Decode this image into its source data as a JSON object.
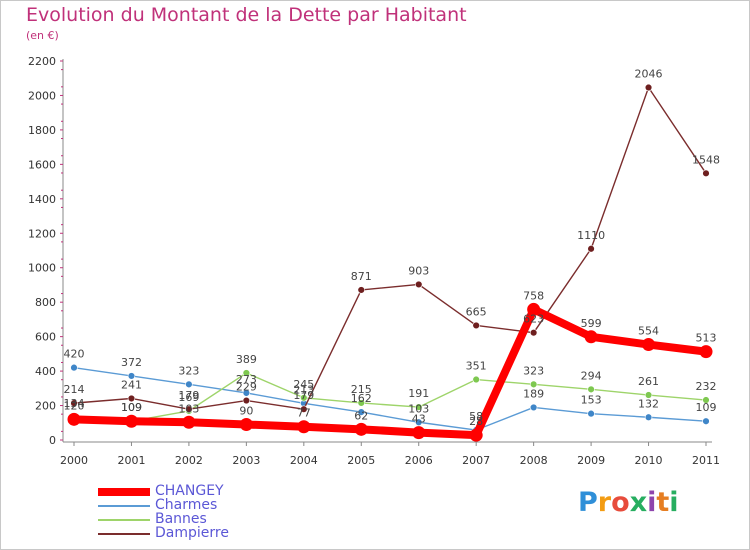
{
  "header": {
    "title": "Evolution du Montant de la Dette par Habitant",
    "subtitle": "(en €)"
  },
  "logo": {
    "letters": [
      {
        "ch": "P",
        "color": "#2f8fd8"
      },
      {
        "ch": "r",
        "color": "#f39c12"
      },
      {
        "ch": "o",
        "color": "#e74c3c"
      },
      {
        "ch": "x",
        "color": "#27ae60"
      },
      {
        "ch": "i",
        "color": "#8e44ad"
      },
      {
        "ch": "t",
        "color": "#e67e22"
      },
      {
        "ch": "i",
        "color": "#27ae60"
      }
    ]
  },
  "chart_data": {
    "type": "line",
    "title": "Evolution du Montant de la Dette par Habitant",
    "subtitle": "(en €)",
    "x": [
      "2000",
      "2001",
      "2002",
      "2003",
      "2004",
      "2005",
      "2006",
      "2007",
      "2008",
      "2009",
      "2010",
      "2011"
    ],
    "ylim": [
      0,
      2200
    ],
    "yticks": [
      0,
      200,
      400,
      600,
      800,
      1000,
      1200,
      1400,
      1600,
      1800,
      2000,
      2200
    ],
    "grid": false,
    "legend_position": "bottom-left",
    "series": [
      {
        "name": "Charmes",
        "color": "#5b9bd5",
        "marker": "#3f86c8",
        "values": [
          420,
          372,
          323,
          273,
          213,
          162,
          103,
          58,
          189,
          153,
          132,
          109
        ],
        "labels": [
          "420",
          "372",
          "323",
          "273",
          "213",
          "162",
          "103",
          "58",
          "189",
          "153",
          "132",
          "109"
        ]
      },
      {
        "name": "Bannes",
        "color": "#9ed46a",
        "marker": "#7ec850",
        "values": [
          134,
          109,
          169,
          389,
          245,
          215,
          191,
          351,
          323,
          294,
          261,
          232
        ],
        "labels": [
          "134",
          "109",
          "169",
          "389",
          "245",
          "215",
          "191",
          "351",
          "323",
          "294",
          "261",
          "232"
        ]
      },
      {
        "name": "Dampierre",
        "color": "#7b2d2d",
        "marker": "#6e1f1f",
        "values": [
          214,
          241,
          179,
          229,
          179,
          871,
          903,
          665,
          623,
          1110,
          2046,
          1548
        ],
        "labels": [
          "214",
          "241",
          "179",
          "229",
          "179",
          "871",
          "903",
          "665",
          "623",
          "1110",
          "2046",
          "1548"
        ]
      },
      {
        "name": "CHANGEY",
        "color": "#ff0000",
        "marker": "#ff0000",
        "values": [
          120,
          109,
          103,
          90,
          77,
          62,
          43,
          28,
          758,
          599,
          554,
          513
        ],
        "labels": [
          "120",
          "109",
          "103",
          "90",
          "77",
          "62",
          "43",
          "28",
          "758",
          "599",
          "554",
          "513"
        ]
      }
    ],
    "legend_order": [
      "CHANGEY",
      "Charmes",
      "Bannes",
      "Dampierre"
    ]
  }
}
